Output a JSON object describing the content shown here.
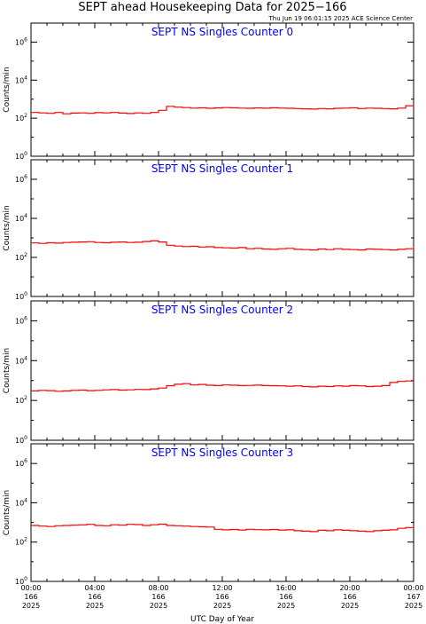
{
  "header": {
    "title": "SEPT ahead Housekeeping Data for 2025−166",
    "subtitle": "Thu Jun 19 06:01:15 2025 ACE Science Center"
  },
  "xlabel": "UTC Day of Year",
  "ylabel": "Counts/min",
  "colors": {
    "series": "#ff0000",
    "panel_title": "#0000ff",
    "axes": "#000000"
  },
  "x_ticks": [
    {
      "hour": 0,
      "l1": "00:00",
      "l2": "166",
      "l3": "2025"
    },
    {
      "hour": 4,
      "l1": "04:00",
      "l2": "166",
      "l3": "2025"
    },
    {
      "hour": 8,
      "l1": "08:00",
      "l2": "166",
      "l3": "2025"
    },
    {
      "hour": 12,
      "l1": "12:00",
      "l2": "166",
      "l3": "2025"
    },
    {
      "hour": 16,
      "l1": "16:00",
      "l2": "166",
      "l3": "2025"
    },
    {
      "hour": 20,
      "l1": "20:00",
      "l2": "166",
      "l3": "2025"
    },
    {
      "hour": 24,
      "l1": "00:00",
      "l2": "167",
      "l3": "2025"
    }
  ],
  "y_ticks": [
    {
      "exp": 0,
      "base": "10",
      "sup": "0"
    },
    {
      "exp": 2,
      "base": "10",
      "sup": "2"
    },
    {
      "exp": 4,
      "base": "10",
      "sup": "4"
    },
    {
      "exp": 6,
      "base": "10",
      "sup": "6"
    }
  ],
  "chart_data": [
    {
      "type": "line",
      "title": "SEPT NS Singles Counter 0",
      "log_y": true,
      "xlim": [
        0,
        24
      ],
      "ylim": [
        1,
        10000000
      ],
      "x": [
        0,
        0.5,
        1,
        1.5,
        2,
        2.5,
        3,
        3.5,
        4,
        4.5,
        5,
        5.5,
        6,
        6.5,
        7,
        7.5,
        8,
        8.5,
        9,
        9.5,
        10,
        10.5,
        11,
        11.5,
        12,
        12.5,
        13,
        13.5,
        14,
        14.5,
        15,
        15.5,
        16,
        16.5,
        17,
        17.5,
        18,
        18.5,
        19,
        19.5,
        20,
        20.5,
        21,
        21.5,
        22,
        22.5,
        23,
        23.5,
        24
      ],
      "y": [
        200,
        190,
        180,
        200,
        170,
        185,
        190,
        180,
        195,
        190,
        200,
        185,
        175,
        190,
        180,
        200,
        260,
        420,
        380,
        360,
        340,
        350,
        330,
        345,
        360,
        350,
        340,
        330,
        345,
        335,
        350,
        340,
        330,
        320,
        310,
        300,
        320,
        310,
        330,
        340,
        350,
        320,
        340,
        330,
        320,
        310,
        340,
        450,
        500
      ]
    },
    {
      "type": "line",
      "title": "SEPT NS Singles Counter 1",
      "log_y": true,
      "xlim": [
        0,
        24
      ],
      "ylim": [
        1,
        10000000
      ],
      "x": [
        0,
        0.5,
        1,
        1.5,
        2,
        2.5,
        3,
        3.5,
        4,
        4.5,
        5,
        5.5,
        6,
        6.5,
        7,
        7.5,
        8,
        8.5,
        9,
        9.5,
        10,
        10.5,
        11,
        11.5,
        12,
        12.5,
        13,
        13.5,
        14,
        14.5,
        15,
        15.5,
        16,
        16.5,
        17,
        17.5,
        18,
        18.5,
        19,
        19.5,
        20,
        20.5,
        21,
        21.5,
        22,
        22.5,
        23,
        23.5,
        24
      ],
      "y": [
        550,
        520,
        560,
        540,
        580,
        600,
        620,
        640,
        580,
        560,
        600,
        620,
        580,
        600,
        650,
        700,
        620,
        420,
        380,
        360,
        370,
        340,
        350,
        320,
        310,
        300,
        320,
        280,
        290,
        270,
        260,
        280,
        290,
        260,
        250,
        240,
        270,
        250,
        280,
        260,
        250,
        240,
        270,
        260,
        250,
        240,
        260,
        280,
        350
      ]
    },
    {
      "type": "line",
      "title": "SEPT NS Singles Counter 2",
      "log_y": true,
      "xlim": [
        0,
        24
      ],
      "ylim": [
        1,
        10000000
      ],
      "x": [
        0,
        0.5,
        1,
        1.5,
        2,
        2.5,
        3,
        3.5,
        4,
        4.5,
        5,
        5.5,
        6,
        6.5,
        7,
        7.5,
        8,
        8.5,
        9,
        9.5,
        10,
        10.5,
        11,
        11.5,
        12,
        12.5,
        13,
        13.5,
        14,
        14.5,
        15,
        15.5,
        16,
        16.5,
        17,
        17.5,
        18,
        18.5,
        19,
        19.5,
        20,
        20.5,
        21,
        21.5,
        22,
        22.5,
        23,
        23.5,
        24
      ],
      "y": [
        300,
        320,
        310,
        290,
        300,
        320,
        330,
        310,
        320,
        340,
        350,
        330,
        340,
        360,
        350,
        380,
        420,
        550,
        650,
        700,
        600,
        640,
        580,
        560,
        600,
        580,
        560,
        570,
        590,
        560,
        550,
        540,
        520,
        540,
        500,
        480,
        520,
        500,
        540,
        520,
        560,
        540,
        500,
        520,
        560,
        800,
        900,
        950,
        1000
      ]
    },
    {
      "type": "line",
      "title": "SEPT NS Singles Counter 3",
      "log_y": true,
      "xlim": [
        0,
        24
      ],
      "ylim": [
        1,
        10000000
      ],
      "x": [
        0,
        0.5,
        1,
        1.5,
        2,
        2.5,
        3,
        3.5,
        4,
        4.5,
        5,
        5.5,
        6,
        6.5,
        7,
        7.5,
        8,
        8.5,
        9,
        9.5,
        10,
        10.5,
        11,
        11.5,
        12,
        12.5,
        13,
        13.5,
        14,
        14.5,
        15,
        15.5,
        16,
        16.5,
        17,
        17.5,
        18,
        18.5,
        19,
        19.5,
        20,
        20.5,
        21,
        21.5,
        22,
        22.5,
        23,
        23.5,
        24
      ],
      "y": [
        700,
        650,
        620,
        680,
        700,
        720,
        750,
        800,
        700,
        680,
        760,
        720,
        800,
        780,
        700,
        760,
        820,
        700,
        680,
        650,
        620,
        600,
        580,
        450,
        420,
        440,
        410,
        450,
        430,
        420,
        440,
        410,
        420,
        380,
        360,
        340,
        400,
        380,
        420,
        400,
        380,
        360,
        340,
        380,
        400,
        420,
        500,
        550,
        620
      ]
    }
  ]
}
